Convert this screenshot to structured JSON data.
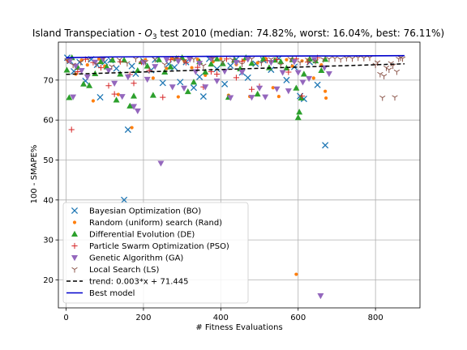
{
  "chart_data": {
    "type": "scatter",
    "title": "Island Transpeciation - O₃ test 2010 (median: 74.82%, worst: 16.04%, best: 76.11%)",
    "title_parts": {
      "prefix": "Island Transpeciation - ",
      "italic": "O",
      "sub": "3",
      "suffix": " test 2010 (median: 74.82%, worst: 16.04%, best: 76.11%)"
    },
    "xlabel": "# Fitness Evaluations",
    "ylabel": "100 - SMAPE%",
    "xlim": [
      -20,
      915
    ],
    "ylim": [
      13,
      79.5
    ],
    "xticks": [
      0,
      200,
      400,
      600,
      800
    ],
    "yticks": [
      20,
      30,
      40,
      50,
      60,
      70
    ],
    "grid": true,
    "legend_position": "lower-left",
    "colors": {
      "BO": "#1f77b4",
      "Rand": "#ff7f0e",
      "DE": "#2ca02c",
      "PSO": "#d62728",
      "GA": "#9467bd",
      "LS": "#8c564b",
      "trend": "#000000",
      "best": "#0000cc"
    },
    "series": [
      {
        "key": "BO",
        "name": "Bayesian Optimization (BO)",
        "marker": "x",
        "points": [
          [
            3,
            75.6
          ],
          [
            10,
            74.8
          ],
          [
            20,
            72.2
          ],
          [
            35,
            74.5
          ],
          [
            50,
            69.8
          ],
          [
            65,
            75.2
          ],
          [
            80,
            73.8
          ],
          [
            88,
            65.7
          ],
          [
            100,
            74.5
          ],
          [
            115,
            75.0
          ],
          [
            130,
            72.9
          ],
          [
            150,
            40.0
          ],
          [
            160,
            57.6
          ],
          [
            170,
            73.5
          ],
          [
            180,
            71.6
          ],
          [
            200,
            74.8
          ],
          [
            220,
            72.5
          ],
          [
            230,
            75.1
          ],
          [
            250,
            69.3
          ],
          [
            265,
            74.0
          ],
          [
            280,
            73.2
          ],
          [
            295,
            69.5
          ],
          [
            310,
            74.5
          ],
          [
            330,
            68.1
          ],
          [
            345,
            70.8
          ],
          [
            355,
            65.9
          ],
          [
            370,
            75.3
          ],
          [
            390,
            72.8
          ],
          [
            410,
            69.0
          ],
          [
            425,
            73.6
          ],
          [
            440,
            75.2
          ],
          [
            455,
            71.9
          ],
          [
            470,
            70.6
          ],
          [
            490,
            74.1
          ],
          [
            510,
            75.0
          ],
          [
            530,
            72.6
          ],
          [
            550,
            75.4
          ],
          [
            570,
            70.0
          ],
          [
            590,
            73.3
          ],
          [
            605,
            66.0
          ],
          [
            615,
            65.3
          ],
          [
            630,
            74.5
          ],
          [
            650,
            68.8
          ],
          [
            670,
            53.7
          ]
        ]
      },
      {
        "key": "Rand",
        "name": "Random (uniform) search (Rand)",
        "marker": "o",
        "points": [
          [
            5,
            74.9
          ],
          [
            25,
            71.5
          ],
          [
            40,
            75.0
          ],
          [
            55,
            73.8
          ],
          [
            70,
            64.8
          ],
          [
            85,
            75.3
          ],
          [
            100,
            73.5
          ],
          [
            120,
            75.2
          ],
          [
            135,
            66.4
          ],
          [
            150,
            74.8
          ],
          [
            170,
            58.1
          ],
          [
            185,
            72.2
          ],
          [
            205,
            75.1
          ],
          [
            225,
            70.5
          ],
          [
            240,
            75.0
          ],
          [
            260,
            72.9
          ],
          [
            275,
            75.4
          ],
          [
            290,
            65.8
          ],
          [
            305,
            74.9
          ],
          [
            325,
            73.1
          ],
          [
            340,
            75.2
          ],
          [
            360,
            71.2
          ],
          [
            380,
            74.6
          ],
          [
            400,
            75.3
          ],
          [
            420,
            66.2
          ],
          [
            440,
            73.9
          ],
          [
            460,
            75.0
          ],
          [
            475,
            65.9
          ],
          [
            495,
            74.3
          ],
          [
            515,
            75.4
          ],
          [
            535,
            68.1
          ],
          [
            550,
            65.9
          ],
          [
            570,
            75.1
          ],
          [
            585,
            73.5
          ],
          [
            595,
            21.4
          ],
          [
            610,
            74.8
          ],
          [
            625,
            75.0
          ],
          [
            640,
            70.5
          ],
          [
            660,
            73.8
          ],
          [
            670,
            67.2
          ],
          [
            672,
            65.5
          ]
        ]
      },
      {
        "key": "DE",
        "name": "Differential Evolution (DE)",
        "marker": "triangle",
        "points": [
          [
            2,
            72.5
          ],
          [
            8,
            65.6
          ],
          [
            15,
            75.6
          ],
          [
            30,
            73.2
          ],
          [
            45,
            69.0
          ],
          [
            60,
            68.6
          ],
          [
            75,
            71.6
          ],
          [
            90,
            74.6
          ],
          [
            105,
            73.3
          ],
          [
            120,
            75.0
          ],
          [
            130,
            65.0
          ],
          [
            140,
            71.5
          ],
          [
            150,
            75.0
          ],
          [
            165,
            63.5
          ],
          [
            175,
            66.0
          ],
          [
            185,
            72.4
          ],
          [
            195,
            74.6
          ],
          [
            210,
            73.5
          ],
          [
            225,
            66.2
          ],
          [
            240,
            75.1
          ],
          [
            255,
            72.0
          ],
          [
            270,
            73.3
          ],
          [
            285,
            75.4
          ],
          [
            300,
            75.6
          ],
          [
            315,
            67.1
          ],
          [
            330,
            69.5
          ],
          [
            345,
            74.6
          ],
          [
            360,
            72.0
          ],
          [
            375,
            74.0
          ],
          [
            390,
            75.3
          ],
          [
            405,
            74.1
          ],
          [
            420,
            65.7
          ],
          [
            435,
            75.0
          ],
          [
            450,
            72.8
          ],
          [
            465,
            75.6
          ],
          [
            480,
            74.2
          ],
          [
            495,
            66.5
          ],
          [
            510,
            75.3
          ],
          [
            525,
            73.1
          ],
          [
            540,
            75.0
          ],
          [
            555,
            74.6
          ],
          [
            570,
            73.0
          ],
          [
            585,
            75.1
          ],
          [
            595,
            68.0
          ],
          [
            600,
            60.6
          ],
          [
            603,
            62.0
          ],
          [
            608,
            65.5
          ],
          [
            615,
            71.5
          ],
          [
            630,
            75.3
          ],
          [
            645,
            74.8
          ],
          [
            660,
            72.4
          ],
          [
            670,
            75.2
          ]
        ]
      },
      {
        "key": "PSO",
        "name": "Particle Swarm Optimization (PSO)",
        "marker": "plus",
        "points": [
          [
            5,
            75.0
          ],
          [
            14,
            57.6
          ],
          [
            30,
            72.1
          ],
          [
            50,
            75.2
          ],
          [
            70,
            74.4
          ],
          [
            90,
            73.1
          ],
          [
            110,
            68.6
          ],
          [
            125,
            66.5
          ],
          [
            140,
            74.6
          ],
          [
            165,
            71.4
          ],
          [
            175,
            69.2
          ],
          [
            195,
            74.5
          ],
          [
            215,
            72.4
          ],
          [
            250,
            65.7
          ],
          [
            270,
            75.1
          ],
          [
            290,
            75.4
          ],
          [
            310,
            74.4
          ],
          [
            340,
            73.2
          ],
          [
            355,
            68.3
          ],
          [
            375,
            72.1
          ],
          [
            390,
            71.5
          ],
          [
            415,
            75.3
          ],
          [
            440,
            70.6
          ],
          [
            455,
            74.7
          ],
          [
            480,
            67.7
          ],
          [
            500,
            68.4
          ],
          [
            520,
            74.9
          ],
          [
            545,
            75.2
          ],
          [
            575,
            72.0
          ],
          [
            595,
            75.3
          ],
          [
            610,
            66.0
          ],
          [
            625,
            74.5
          ],
          [
            650,
            75.6
          ]
        ]
      },
      {
        "key": "GA",
        "name": "Genetic Algorithm (GA)",
        "marker": "triangle-down",
        "points": [
          [
            10,
            74.8
          ],
          [
            18,
            65.8
          ],
          [
            25,
            73.5
          ],
          [
            40,
            72.4
          ],
          [
            55,
            70.8
          ],
          [
            75,
            74.5
          ],
          [
            95,
            75.3
          ],
          [
            110,
            72.4
          ],
          [
            125,
            69.2
          ],
          [
            145,
            65.9
          ],
          [
            160,
            70.8
          ],
          [
            175,
            63.4
          ],
          [
            185,
            62.3
          ],
          [
            200,
            74.4
          ],
          [
            210,
            70.2
          ],
          [
            230,
            73.4
          ],
          [
            245,
            49.2
          ],
          [
            260,
            75.1
          ],
          [
            275,
            68.3
          ],
          [
            290,
            74.7
          ],
          [
            305,
            68.0
          ],
          [
            320,
            75.2
          ],
          [
            335,
            72.1
          ],
          [
            345,
            74.2
          ],
          [
            360,
            68.3
          ],
          [
            375,
            75.3
          ],
          [
            390,
            69.8
          ],
          [
            410,
            72.2
          ],
          [
            425,
            65.6
          ],
          [
            440,
            74.4
          ],
          [
            455,
            72.0
          ],
          [
            470,
            75.2
          ],
          [
            480,
            65.7
          ],
          [
            500,
            68.0
          ],
          [
            515,
            65.8
          ],
          [
            530,
            74.4
          ],
          [
            545,
            67.8
          ],
          [
            560,
            71.9
          ],
          [
            575,
            67.3
          ],
          [
            590,
            74.6
          ],
          [
            600,
            71.9
          ],
          [
            612,
            69.5
          ],
          [
            628,
            70.4
          ],
          [
            642,
            75.2
          ],
          [
            658,
            16.04
          ],
          [
            668,
            73.1
          ],
          [
            680,
            71.6
          ]
        ]
      },
      {
        "key": "LS",
        "name": "Local Search (LS)",
        "marker": "tri",
        "points": [
          [
            3,
            75.0
          ],
          [
            18,
            73.8
          ],
          [
            38,
            74.5
          ],
          [
            58,
            75.2
          ],
          [
            78,
            74.0
          ],
          [
            98,
            75.4
          ],
          [
            118,
            73.4
          ],
          [
            138,
            75.1
          ],
          [
            158,
            74.2
          ],
          [
            180,
            75.3
          ],
          [
            205,
            74.5
          ],
          [
            230,
            75.2
          ],
          [
            255,
            73.9
          ],
          [
            280,
            75.4
          ],
          [
            305,
            74.8
          ],
          [
            330,
            75.2
          ],
          [
            355,
            73.6
          ],
          [
            380,
            75.4
          ],
          [
            405,
            74.6
          ],
          [
            430,
            75.1
          ],
          [
            455,
            74.0
          ],
          [
            480,
            75.3
          ],
          [
            505,
            74.3
          ],
          [
            530,
            75.2
          ],
          [
            555,
            73.8
          ],
          [
            580,
            75.3
          ],
          [
            605,
            74.4
          ],
          [
            625,
            75.1
          ],
          [
            645,
            74.7
          ],
          [
            665,
            75.2
          ],
          [
            680,
            75.3
          ],
          [
            695,
            75.4
          ],
          [
            710,
            75.2
          ],
          [
            725,
            75.5
          ],
          [
            740,
            75.4
          ],
          [
            755,
            75.6
          ],
          [
            770,
            75.5
          ],
          [
            785,
            75.6
          ],
          [
            800,
            73.8
          ],
          [
            805,
            74.4
          ],
          [
            812,
            71.5
          ],
          [
            818,
            65.6
          ],
          [
            822,
            71.0
          ],
          [
            828,
            73.1
          ],
          [
            835,
            72.6
          ],
          [
            840,
            74.2
          ],
          [
            845,
            73.6
          ],
          [
            850,
            65.7
          ],
          [
            855,
            72.1
          ],
          [
            860,
            75.3
          ],
          [
            865,
            75.6
          ],
          [
            870,
            75.4
          ]
        ]
      }
    ],
    "trend": {
      "name": "trend: 0.003*x + 71.445",
      "slope": 0.003,
      "intercept": 71.445,
      "x_range": [
        0,
        875
      ]
    },
    "best_model": {
      "name": "Best model",
      "points": [
        [
          0,
          75.6
        ],
        [
          120,
          75.8
        ],
        [
          300,
          75.9
        ],
        [
          500,
          76.0
        ],
        [
          700,
          76.05
        ],
        [
          875,
          76.11
        ]
      ]
    }
  }
}
